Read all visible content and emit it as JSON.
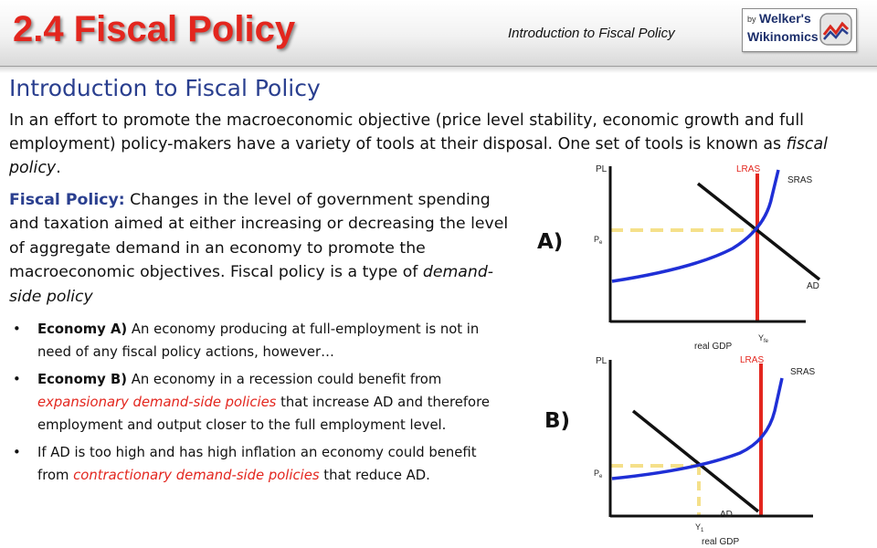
{
  "header": {
    "title": "2.4 Fiscal Policy",
    "subtitle": "Introduction to Fiscal Policy",
    "logo": {
      "by": "by",
      "name": "Welker's",
      "sub": "Wikinomics"
    }
  },
  "section_title": "Introduction to Fiscal Policy",
  "intro": {
    "text": "In an effort to promote the macroeconomic objective (price level stability, economic growth and full employment) policy-makers have a variety of tools at their disposal. One set of tools is known as ",
    "emphasis": "fiscal policy",
    "end": "."
  },
  "fiscal_policy": {
    "term": "Fiscal Policy:",
    "definition": " Changes in the level of government spending and taxation aimed at either increasing or decreasing the level of aggregate demand in an economy to promote the macroeconomic objectives. Fiscal policy is a type of ",
    "emphasis": "demand-side policy"
  },
  "bullets": [
    {
      "marker": "•",
      "bold": "Economy A)",
      "text": " An economy producing at full-employment is not in need of any fiscal policy actions, however…"
    },
    {
      "marker": "•",
      "bold": "Economy B)",
      "text": " An economy in a recession could benefit from ",
      "red": "expansionary demand-side policies",
      "tail": " that increase AD and therefore employment and output closer to the full employment level."
    },
    {
      "marker": "•",
      "bold": "",
      "text": "If AD is too high and has high inflation an economy could benefit from ",
      "red": "contractionary demand-side policies",
      "tail": " that reduce AD."
    }
  ],
  "graph_a": {
    "panel_label": "A)",
    "y_axis": "PL",
    "x_axis": "real GDP",
    "lras": "LRAS",
    "sras": "SRAS",
    "ad": "AD",
    "pe": "P",
    "pe_sub": "e",
    "yfe": "Y",
    "yfe_sub": "fe"
  },
  "graph_b": {
    "panel_label": "B)",
    "y_axis": "PL",
    "x_axis": "real GDP",
    "lras": "LRAS",
    "sras": "SRAS",
    "ad": "AD",
    "pe": "P",
    "pe_sub": "e",
    "y1": "Y",
    "y1_sub": "1"
  },
  "colors": {
    "title_red": "#e3261e",
    "heading_blue": "#2a3f8f",
    "lras_red": "#e3261e",
    "sras_blue": "#1f2fd6",
    "guide_yellow": "#f5e08a"
  }
}
